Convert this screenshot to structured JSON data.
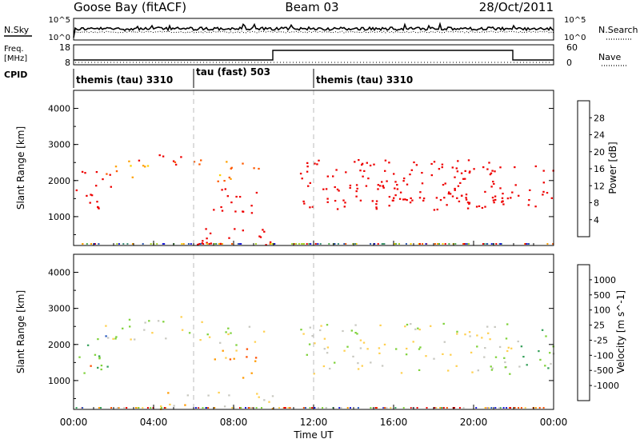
{
  "header": {
    "station": "Goose Bay (fitACF)",
    "beam": "Beam 03",
    "date": "28/Oct/2011"
  },
  "side_labels": {
    "nsky": "N.Sky",
    "nsearch": "N.Search",
    "freq_line1": "Freq.",
    "freq_line2": "[MHz]",
    "nave": "Nave",
    "cpid": "CPID"
  },
  "noise_axis": {
    "left_ticks": [
      "10^5",
      "10^0"
    ],
    "right_ticks": [
      "10^5",
      "10^0"
    ]
  },
  "freq_axis": {
    "left_ticks": [
      "18",
      "8"
    ],
    "right_ticks": [
      "60",
      "0"
    ]
  },
  "cpid_segments": [
    {
      "label": "themis (tau) 3310",
      "start_h": 0,
      "end_h": 6
    },
    {
      "label": "tau (fast) 503",
      "start_h": 6,
      "end_h": 12
    },
    {
      "label": "themis (tau) 3310",
      "start_h": 12,
      "end_h": 24
    }
  ],
  "chart_data": [
    {
      "type": "heatmap",
      "name": "power",
      "ylabel": "Slant Range [km]",
      "ylim": [
        200,
        4500
      ],
      "y_ticks": [
        "1000",
        "2000",
        "3000",
        "4000"
      ],
      "colorbar_label": "Power [dB]",
      "colorbar_ticks": [
        "28",
        "24",
        "20",
        "16",
        "12",
        "8",
        "4"
      ],
      "colors": [
        "#1c1cd9",
        "#2d58b0",
        "#3d8f77",
        "#4cad4c",
        "#a8d12a",
        "#ffd000",
        "#ffa000",
        "#ff5a00",
        "#ee0000"
      ],
      "regions": [
        {
          "t0": 0.0,
          "t1": 1.9,
          "r0": 1200,
          "r1": 2300,
          "level": 12
        },
        {
          "t0": 0.1,
          "t1": 1.2,
          "r0": 1400,
          "r1": 1800,
          "level": 20
        },
        {
          "t0": 1.5,
          "t1": 4.5,
          "r0": 2100,
          "r1": 2600,
          "level": 6
        },
        {
          "t0": 3.2,
          "t1": 6.5,
          "r0": 2300,
          "r1": 2800,
          "level": 8
        },
        {
          "t0": 6.5,
          "t1": 9.5,
          "r0": 2000,
          "r1": 2600,
          "level": 6
        },
        {
          "t0": 6.8,
          "t1": 9.2,
          "r0": 1100,
          "r1": 1900,
          "level": 14
        },
        {
          "t0": 7.2,
          "t1": 8.4,
          "r0": 1400,
          "r1": 1800,
          "level": 20
        },
        {
          "t0": 4.3,
          "t1": 10.0,
          "r0": 200,
          "r1": 700,
          "level": 10
        },
        {
          "t0": 11.3,
          "t1": 22.0,
          "r0": 1200,
          "r1": 2600,
          "level": 14
        },
        {
          "t0": 12.5,
          "t1": 21.8,
          "r0": 1300,
          "r1": 2000,
          "level": 20
        },
        {
          "t0": 14.0,
          "t1": 21.8,
          "r0": 1400,
          "r1": 1800,
          "level": 24
        },
        {
          "t0": 13.5,
          "t1": 21.0,
          "r0": 2200,
          "r1": 2600,
          "level": 10
        },
        {
          "t0": 22.0,
          "t1": 24.0,
          "r0": 1300,
          "r1": 2500,
          "level": 10
        }
      ]
    },
    {
      "type": "heatmap",
      "name": "velocity",
      "ylabel": "Slant Range [km]",
      "ylim": [
        200,
        4500
      ],
      "y_ticks": [
        "1000",
        "2000",
        "3000",
        "4000"
      ],
      "colorbar_label": "Velocity [m s^-1]",
      "colorbar_ticks": [
        "1000",
        "500",
        "100",
        "25",
        "-25",
        "-100",
        "-500",
        "-1000"
      ],
      "colors": [
        "#1c1cd9",
        "#2e5dbf",
        "#35a05a",
        "#7fd23a",
        "#c8c8c0",
        "#ffd050",
        "#ff9a00",
        "#ff5000",
        "#ee0000"
      ],
      "regions": [
        {
          "t0": 0.0,
          "t1": 1.9,
          "r0": 1200,
          "r1": 2300,
          "level": 2
        },
        {
          "t0": 0.2,
          "t1": 1.3,
          "r0": 1300,
          "r1": 1500,
          "level": 7
        },
        {
          "t0": 1.5,
          "t1": 6.5,
          "r0": 2100,
          "r1": 2800,
          "level": 4
        },
        {
          "t0": 6.5,
          "t1": 9.5,
          "r0": 2000,
          "r1": 2600,
          "level": 4
        },
        {
          "t0": 6.8,
          "t1": 9.2,
          "r0": 1100,
          "r1": 1900,
          "level": 6
        },
        {
          "t0": 4.3,
          "t1": 10.0,
          "r0": 200,
          "r1": 700,
          "level": 5
        },
        {
          "t0": 11.3,
          "t1": 22.0,
          "r0": 1200,
          "r1": 2600,
          "level": 4
        },
        {
          "t0": 22.0,
          "t1": 24.0,
          "r0": 1300,
          "r1": 2500,
          "level": 3
        }
      ]
    }
  ],
  "x_axis": {
    "label": "Time UT",
    "ticks": [
      "00:00",
      "04:00",
      "08:00",
      "12:00",
      "16:00",
      "20:00",
      "00:00"
    ]
  }
}
